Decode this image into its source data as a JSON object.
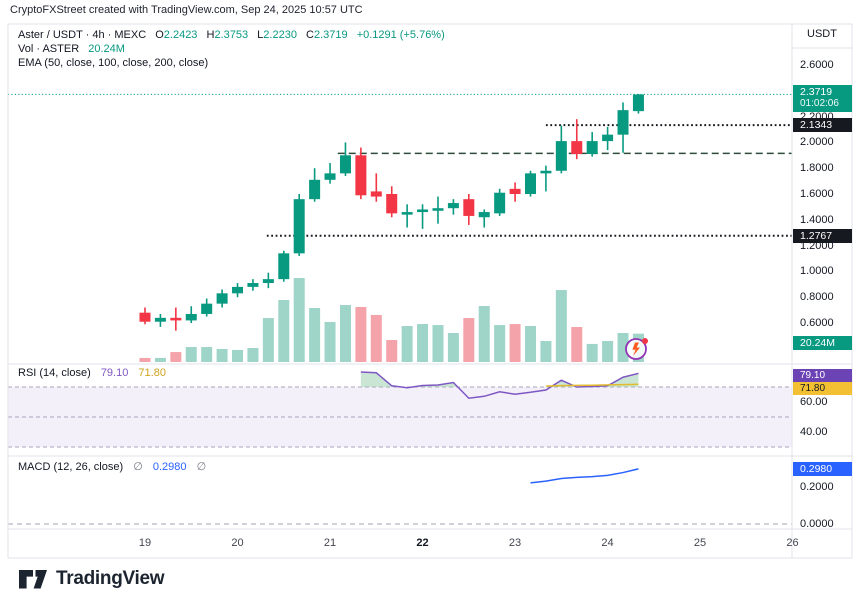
{
  "attribution": "CryptoFXStreet created with TradingView.com, Sep 24, 2025 10:57 UTC",
  "legend": {
    "symbol": "Aster / USDT · 4h · MEXC",
    "o_label": "O",
    "o": "2.2423",
    "h_label": "H",
    "h": "2.3753",
    "l_label": "L",
    "l": "2.2230",
    "c_label": "C",
    "c": "2.3719",
    "change": "+0.1291 (+5.76%)",
    "vol_label": "Vol · ASTER",
    "vol_value": "20.24M",
    "ema": "EMA (50, close, 100, close, 200, close)"
  },
  "rsi_legend": {
    "label": "RSI (14, close)",
    "value": "79.10",
    "ma_value": "71.80"
  },
  "macd_legend": {
    "label": "MACD (12, 26, close)",
    "marker1": "∅",
    "value": "0.2980",
    "marker2": "∅"
  },
  "axis": {
    "currency_label": "USDT"
  },
  "badges": {
    "price": "2.3719",
    "countdown": "01:02:06",
    "level_high": "2.1343",
    "level_low": "1.2767",
    "volume": "20.24M",
    "rsi": "79.10",
    "rsi_ma": "71.80",
    "macd": "0.2980"
  },
  "logo_text": "TradingView",
  "colors": {
    "up": "#089981",
    "down": "#f23645",
    "vol_up": "#9fd4c9",
    "vol_down": "#f5a3aa",
    "accent": "#089981",
    "rsi_line": "#7e57c2",
    "rsi_ma_line": "#e3bb2e",
    "rsi_band": "#f3f0fa",
    "rsi_dash": "#a9a3bd",
    "rsi_fill": "#9fd0ae",
    "macd_line": "#2962ff",
    "macd_dash": "#c0c3cc",
    "frame": "#e0e3eb",
    "level_dark": "#16191f",
    "level_green_dashed": "#2e4b3c"
  },
  "chart_data": {
    "type": "candlestick",
    "title": "Aster / USDT · 4h · MEXC",
    "symbol": "ASTER/USDT",
    "interval": "4h",
    "exchange": "MEXC",
    "current": {
      "open": 2.2423,
      "high": 2.3753,
      "low": 2.223,
      "close": 2.3719,
      "change_text": "+0.1291 (+5.76%)",
      "countdown": "01:02:06"
    },
    "y_axis": {
      "unit": "USDT",
      "ticks": [
        {
          "label": "2.6000",
          "p": 2.6
        },
        {
          "label": "2.4000",
          "p": 2.4
        },
        {
          "label": "2.2000",
          "p": 2.2
        },
        {
          "label": "2.0000",
          "p": 2.0
        },
        {
          "label": "1.8000",
          "p": 1.8
        },
        {
          "label": "1.6000",
          "p": 1.6
        },
        {
          "label": "1.4000",
          "p": 1.4
        },
        {
          "label": "1.2000",
          "p": 1.2
        },
        {
          "label": "1.0000",
          "p": 1.0
        },
        {
          "label": "0.8000",
          "p": 0.8
        },
        {
          "label": "0.6000",
          "p": 0.6
        }
      ]
    },
    "x_axis": {
      "labels": [
        "19",
        "20",
        "21",
        "22",
        "23",
        "24",
        "25",
        "26"
      ],
      "bold_label": "22",
      "unit": "September 2025, one candle = 4h"
    },
    "candles": [
      [
        0.68,
        0.72,
        0.59,
        0.61
      ],
      [
        0.61,
        0.67,
        0.57,
        0.64
      ],
      [
        0.64,
        0.72,
        0.54,
        0.62
      ],
      [
        0.62,
        0.73,
        0.6,
        0.67
      ],
      [
        0.67,
        0.79,
        0.65,
        0.75
      ],
      [
        0.75,
        0.86,
        0.72,
        0.83
      ],
      [
        0.83,
        0.91,
        0.8,
        0.88
      ],
      [
        0.88,
        0.94,
        0.85,
        0.91
      ],
      [
        0.91,
        0.99,
        0.87,
        0.94
      ],
      [
        0.94,
        1.16,
        0.92,
        1.14
      ],
      [
        1.14,
        1.6,
        1.12,
        1.56
      ],
      [
        1.56,
        1.8,
        1.54,
        1.71
      ],
      [
        1.71,
        1.84,
        1.68,
        1.76
      ],
      [
        1.76,
        2.0,
        1.74,
        1.9
      ],
      [
        1.9,
        1.96,
        1.56,
        1.59
      ],
      [
        1.62,
        1.76,
        1.54,
        1.58
      ],
      [
        1.6,
        1.66,
        1.42,
        1.45
      ],
      [
        1.44,
        1.52,
        1.34,
        1.46
      ],
      [
        1.46,
        1.52,
        1.33,
        1.48
      ],
      [
        1.47,
        1.58,
        1.37,
        1.49
      ],
      [
        1.49,
        1.56,
        1.44,
        1.53
      ],
      [
        1.56,
        1.6,
        1.36,
        1.43
      ],
      [
        1.42,
        1.48,
        1.34,
        1.46
      ],
      [
        1.45,
        1.64,
        1.43,
        1.61
      ],
      [
        1.64,
        1.69,
        1.54,
        1.6
      ],
      [
        1.6,
        1.78,
        1.58,
        1.76
      ],
      [
        1.76,
        1.82,
        1.62,
        1.78
      ],
      [
        1.78,
        2.13,
        1.76,
        2.01
      ],
      [
        2.01,
        2.18,
        1.87,
        1.91
      ],
      [
        1.91,
        2.08,
        1.89,
        2.01
      ],
      [
        2.01,
        2.12,
        1.94,
        2.06
      ],
      [
        2.06,
        2.31,
        1.92,
        2.25
      ],
      [
        2.2423,
        2.3753,
        2.223,
        2.3719
      ]
    ],
    "volumes_m": [
      2.9,
      2.9,
      7.1,
      10.7,
      10.7,
      9.3,
      8.6,
      10,
      31.4,
      44.3,
      60,
      38.6,
      28.6,
      40.7,
      39.3,
      33.6,
      15.7,
      25.7,
      27.1,
      26.4,
      20.7,
      31.4,
      40,
      26.4,
      27.1,
      25.7,
      15,
      51.4,
      25,
      12.9,
      15,
      20.7,
      20.24
    ],
    "volume_current_label": "20.24M",
    "levels": [
      {
        "price": 2.3719,
        "style": "dotted",
        "color_key": "accent",
        "start_index": null,
        "width": 1
      },
      {
        "price": 2.1343,
        "style": "dotted",
        "color_key": "level_dark",
        "start_index": 26,
        "width": 2
      },
      {
        "price": 1.915,
        "style": "dashed",
        "color_key": "level_green_dashed",
        "start_index": 12.5,
        "width": 1.5
      },
      {
        "price": 1.2767,
        "style": "dotted",
        "color_key": "level_dark",
        "start_index": 7.9,
        "width": 2
      }
    ],
    "rsi": {
      "label": "RSI (14, close)",
      "current": 79.1,
      "ma_current": 71.8,
      "overbought": 70,
      "midline": 50,
      "oversold": 30,
      "ticks": [
        {
          "label": "60.00",
          "v": 60
        },
        {
          "label": "40.00",
          "v": 40
        }
      ],
      "values_start_index": 14,
      "values": [
        80,
        79.5,
        70.8,
        69.5,
        71,
        71.3,
        73,
        62.5,
        63.8,
        66.8,
        65.2,
        66.5,
        68,
        74.5,
        70,
        70.3,
        70.8,
        76.5,
        79.1
      ],
      "ma_start_index": 26,
      "ma_values": [
        70.6,
        70.9,
        71.1,
        71.2,
        71.4,
        71.6,
        71.8
      ]
    },
    "macd": {
      "label": "MACD (12, 26, close)",
      "current": 0.298,
      "ticks": [
        {
          "label": "0.2000",
          "v": 0.2
        },
        {
          "label": "0.0000",
          "v": 0.0
        }
      ],
      "values_start_index": 25,
      "values": [
        0.222,
        0.232,
        0.246,
        0.252,
        0.256,
        0.263,
        0.278,
        0.298
      ]
    }
  }
}
